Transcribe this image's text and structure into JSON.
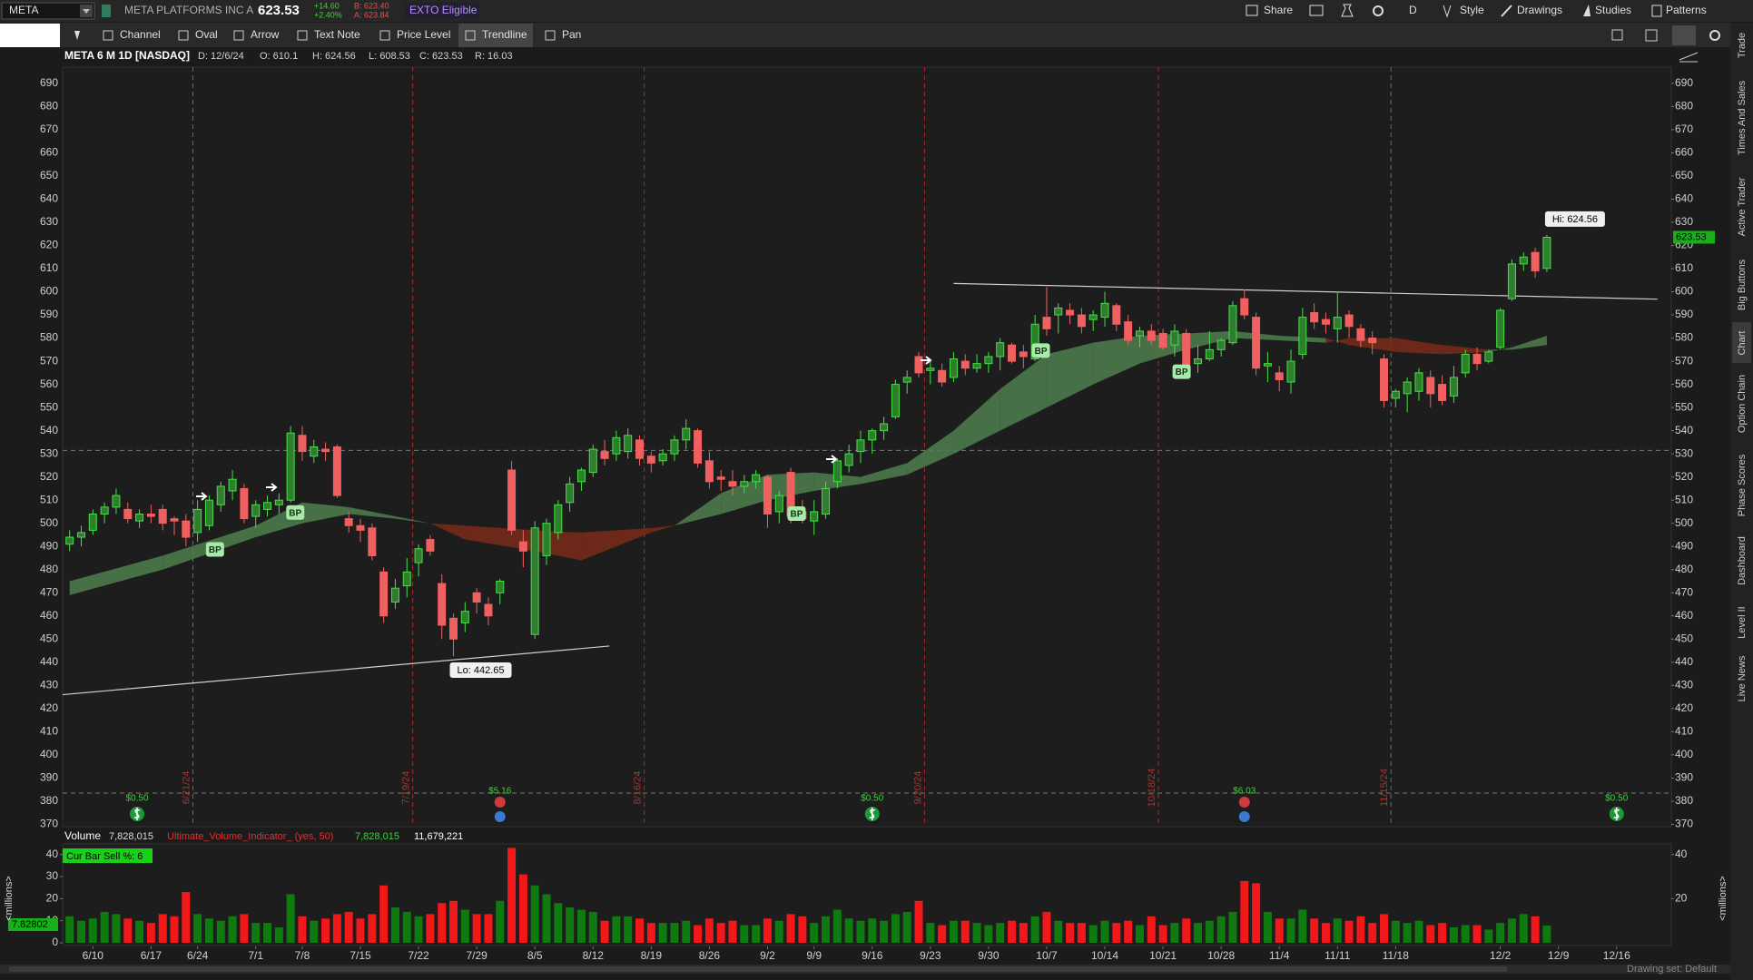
{
  "header": {
    "symbol": "META",
    "company": "META PLATFORMS INC A",
    "change": "+14.60",
    "change_pct": "+2.40%",
    "bid": "B: 623.40",
    "ask": "A: 623.84",
    "badge": "EXTO Eligible",
    "share": "Share",
    "period": "D",
    "style": "Style",
    "drawings": "Drawings",
    "studies": "Studies",
    "patterns": "Patterns"
  },
  "toolbar": [
    "Channel",
    "Oval",
    "Arrow",
    "Text Note",
    "Price Level",
    "Trendline",
    "Pan"
  ],
  "sidebar": [
    "Trade",
    "Times And Sales",
    "Active Trader",
    "Big Buttons",
    "Chart",
    "Option Chain",
    "Phase Scores",
    "Dashboard",
    "Level II",
    "Live News"
  ],
  "footer": "Drawing set: Default",
  "chart_data": [
    {
      "type": "candlestick",
      "title": "META 6 M 1D [NASDAQ]",
      "info": [
        "D: 12/6/24",
        "O: 610.1",
        "H: 624.56",
        "L: 608.53",
        "C: 623.53",
        "R: 16.03"
      ],
      "open": [
        491,
        494,
        497,
        504,
        507,
        506,
        501,
        504,
        506,
        502,
        501,
        496,
        499,
        508,
        514,
        515,
        503,
        506,
        508,
        510,
        538,
        529,
        532,
        533,
        502,
        499,
        498,
        479,
        466,
        473,
        483,
        493,
        474,
        459,
        457,
        470,
        465,
        470,
        523,
        492,
        452,
        486,
        496,
        509,
        518,
        522,
        531,
        530,
        531,
        536,
        529,
        527,
        530,
        536,
        540,
        527,
        520,
        518,
        516,
        518,
        520,
        505,
        522,
        505,
        501,
        504,
        518,
        525,
        531,
        536,
        540,
        546,
        561,
        572,
        566,
        566,
        563,
        570,
        567,
        569,
        572,
        577,
        574,
        571,
        589,
        590,
        592,
        590,
        588,
        589,
        594,
        587,
        581,
        583,
        582,
        577,
        582,
        569,
        571,
        575,
        578,
        597,
        589,
        568,
        565,
        561,
        573,
        591,
        588,
        584,
        590,
        584,
        580,
        571,
        554,
        556,
        557,
        563,
        560,
        555,
        565,
        573,
        570,
        576,
        597,
        612,
        617,
        610.1
      ],
      "high": [
        497,
        499,
        506,
        509,
        515,
        509,
        506,
        508,
        508,
        503,
        504,
        510,
        512,
        518,
        523,
        517,
        510,
        512,
        513,
        542,
        542,
        536,
        535,
        534,
        505,
        502,
        500,
        481,
        476,
        485,
        491,
        495,
        478,
        461,
        466,
        472,
        468,
        476,
        527,
        497,
        501,
        502,
        510,
        520,
        524,
        534,
        536,
        540,
        541,
        538,
        531,
        532,
        538,
        545,
        541,
        531,
        523,
        523,
        521,
        523,
        521,
        514,
        524,
        510,
        510,
        518,
        528,
        534,
        540,
        541,
        546,
        562,
        566,
        574,
        571,
        569,
        574,
        573,
        573,
        574,
        580,
        578,
        577,
        590,
        602,
        595,
        595,
        593,
        592,
        600,
        595,
        590,
        585,
        586,
        584,
        586,
        584,
        577,
        583,
        580,
        596,
        601,
        591,
        574,
        568,
        575,
        593,
        595,
        591,
        600,
        592,
        586,
        583,
        573,
        558,
        563,
        567,
        566,
        564,
        568,
        575,
        576,
        575,
        593,
        614,
        617,
        619,
        624.56
      ],
      "low": [
        488,
        490,
        495,
        500,
        504,
        500,
        498,
        500,
        497,
        495,
        490,
        492,
        497,
        505,
        510,
        500,
        498,
        503,
        504,
        509,
        527,
        526,
        527,
        511,
        496,
        492,
        484,
        457,
        463,
        468,
        477,
        486,
        450,
        442.65,
        453,
        461,
        456,
        465,
        495,
        481,
        450,
        482,
        493,
        505,
        514,
        520,
        525,
        527,
        528,
        525,
        522,
        525,
        527,
        532,
        524,
        515,
        514,
        512,
        513,
        515,
        498,
        500,
        500,
        500,
        495,
        502,
        515,
        522,
        526,
        530,
        536,
        545,
        556,
        563,
        560,
        559,
        561,
        564,
        565,
        565,
        566,
        569,
        567,
        570,
        581,
        582,
        586,
        582,
        583,
        585,
        583,
        577,
        576,
        577,
        575,
        572,
        565,
        565,
        570,
        572,
        577,
        588,
        564,
        561,
        557,
        556,
        571,
        584,
        582,
        578,
        580,
        576,
        573,
        550,
        550,
        548,
        553,
        550,
        551,
        552,
        563,
        566,
        569,
        575,
        596,
        609,
        606,
        608.53
      ],
      "close": [
        494,
        496,
        504,
        507,
        512,
        502,
        504,
        503,
        500,
        501,
        494,
        506,
        510,
        516,
        519,
        502,
        508,
        509,
        510,
        539,
        531,
        533,
        531,
        512,
        499,
        497,
        486,
        460,
        472,
        479,
        489,
        488,
        456,
        450,
        462,
        466,
        460,
        475,
        497,
        488,
        498,
        500,
        508,
        517,
        523,
        532,
        528,
        537,
        538,
        528,
        526,
        530,
        536,
        541,
        526,
        518,
        519,
        516,
        518,
        521,
        504,
        512,
        503,
        502,
        505,
        515,
        527,
        530,
        536,
        540,
        543,
        560,
        563,
        565,
        567,
        561,
        571,
        567,
        569,
        572,
        578,
        570,
        572,
        586,
        584,
        593,
        590,
        585,
        590,
        595,
        586,
        579,
        583,
        579,
        576,
        583,
        566,
        571,
        575,
        579,
        594,
        590,
        567,
        569,
        562,
        570,
        589,
        587,
        586,
        589,
        585,
        579,
        578,
        553,
        557,
        561,
        565,
        556,
        553,
        563,
        573,
        569,
        574,
        592,
        612,
        615,
        609,
        623.53
      ],
      "colors": {
        "up": "#2f7d2f",
        "up_edge": "#45e045",
        "down": "#f06060"
      },
      "xlim": [
        -0.6,
        137.7
      ],
      "xticks": [
        {
          "value": 2,
          "label": "6/10"
        },
        {
          "value": 7,
          "label": "6/17"
        },
        {
          "value": 11,
          "label": "6/24"
        },
        {
          "value": 16,
          "label": "7/1"
        },
        {
          "value": 20,
          "label": "7/8"
        },
        {
          "value": 25,
          "label": "7/15"
        },
        {
          "value": 30,
          "label": "7/22"
        },
        {
          "value": 35,
          "label": "7/29"
        },
        {
          "value": 40,
          "label": "8/5"
        },
        {
          "value": 45,
          "label": "8/12"
        },
        {
          "value": 50,
          "label": "8/19"
        },
        {
          "value": 55,
          "label": "8/26"
        },
        {
          "value": 60,
          "label": "9/2"
        },
        {
          "value": 64,
          "label": "9/9"
        },
        {
          "value": 69,
          "label": "9/16"
        },
        {
          "value": 74,
          "label": "9/23"
        },
        {
          "value": 79,
          "label": "9/30"
        },
        {
          "value": 84,
          "label": "10/7"
        },
        {
          "value": 89,
          "label": "10/14"
        },
        {
          "value": 94,
          "label": "10/21"
        },
        {
          "value": 99,
          "label": "10/28"
        },
        {
          "value": 104,
          "label": "11/4"
        },
        {
          "value": 109,
          "label": "11/11"
        },
        {
          "value": 114,
          "label": "11/18"
        },
        {
          "value": 123,
          "label": "12/2"
        },
        {
          "value": 128,
          "label": "12/9"
        },
        {
          "value": 133,
          "label": "12/16"
        }
      ],
      "ylim": [
        369,
        697
      ],
      "yticks": [
        370,
        380,
        390,
        400,
        410,
        420,
        430,
        440,
        450,
        460,
        470,
        480,
        490,
        500,
        510,
        520,
        530,
        540,
        550,
        560,
        570,
        580,
        590,
        600,
        610,
        620,
        630,
        640,
        650,
        660,
        670,
        680,
        690
      ],
      "high_label": "Hi: 624.56",
      "low_label": "Lo: 442.65",
      "cloud": {
        "x": [
          0,
          8,
          16,
          20,
          24,
          28,
          31,
          34,
          40,
          44,
          50,
          52,
          56,
          60,
          64,
          68,
          72,
          76,
          80,
          84,
          88,
          92,
          96,
          100,
          104,
          108,
          110,
          114,
          118,
          122,
          124,
          127
        ],
        "fast": [
          475,
          486,
          499,
          509,
          507,
          503,
          500,
          493,
          488,
          484,
          496,
          499,
          513,
          521,
          522,
          520,
          526,
          540,
          558,
          573,
          578,
          581,
          582,
          583,
          581,
          580,
          577,
          574,
          573,
          574,
          576,
          581
        ],
        "slow": [
          469,
          480,
          494,
          500,
          504,
          502,
          500,
          499,
          497,
          496,
          498,
          499,
          504,
          510,
          514,
          517,
          521,
          530,
          540,
          550,
          560,
          569,
          575,
          580,
          579,
          578,
          580,
          580,
          577,
          575,
          575,
          577
        ],
        "colors": {
          "up": "#4f7f4f",
          "down": "#7a2a18"
        }
      },
      "trendlines": [
        {
          "x": [
            -0.6,
            46.4
          ],
          "y": [
            426,
            447
          ]
        },
        {
          "x": [
            76,
            136.5
          ],
          "y": [
            603.6,
            596.8
          ]
        }
      ],
      "hlines": [
        531.5,
        383.5
      ],
      "expirations": [
        {
          "x": 10.6,
          "label": "6/21/24",
          "color": "#6a6a6a"
        },
        {
          "x": 29.5,
          "label": "7/19/24",
          "color": "#b02828"
        },
        {
          "x": 49.4,
          "label": "8/16/24",
          "color": "#b02828"
        },
        {
          "x": 73.5,
          "label": "9/20/24",
          "color": "#b02828"
        },
        {
          "x": 93.6,
          "label": "10/18/24",
          "color": "#b02828"
        },
        {
          "x": 113.6,
          "label": "11/15/24",
          "color": "#6a6a6a"
        }
      ],
      "bp": [
        {
          "label": "BP",
          "x": 12.5,
          "y": 488.7
        },
        {
          "label": "BP",
          "x": 19.4,
          "y": 504.7
        },
        {
          "label": "BP",
          "x": 62.5,
          "y": 504.2
        },
        {
          "label": "BP",
          "x": 83.5,
          "y": 574.6
        },
        {
          "label": "BP",
          "x": 95.6,
          "y": 565.5
        }
      ],
      "events": [
        {
          "kind": "dividend",
          "x": 5.8,
          "label": "$0.50"
        },
        {
          "kind": "earnings",
          "x": 37,
          "label": "$5.16"
        },
        {
          "kind": "dividend",
          "x": 69,
          "label": "$0.50"
        },
        {
          "kind": "earnings",
          "x": 101,
          "label": "$6.03"
        },
        {
          "kind": "dividend",
          "x": 133,
          "label": "$0.50"
        }
      ]
    },
    {
      "type": "bar",
      "title": "Volume",
      "legend": [
        "7,828,015",
        "Ultimate_Volume_Indicator_ (yes, 50)",
        "7,828,015",
        "11,679,221"
      ],
      "badge": "Cur Bar Sell %: 6",
      "last_label": "7.82802",
      "axis_label": "<millions>",
      "values": [
        12,
        10,
        11,
        14,
        13,
        11,
        10,
        9,
        13,
        12,
        23,
        13,
        11,
        10,
        12,
        13,
        9,
        9,
        7,
        22,
        12,
        10,
        11,
        13,
        14,
        11,
        13,
        26,
        16,
        14,
        12,
        13,
        18,
        19,
        15,
        13,
        13,
        19,
        43,
        31,
        26,
        22,
        18,
        16,
        15,
        14,
        10,
        12,
        12,
        11,
        9,
        9,
        9,
        10,
        8,
        11,
        9,
        10,
        8,
        8,
        11,
        10,
        13,
        12,
        9,
        12,
        15,
        11,
        10,
        11,
        10,
        13,
        14,
        19,
        9,
        8,
        10,
        10,
        9,
        8,
        9,
        10,
        9,
        12,
        14,
        10,
        9,
        9,
        8,
        10,
        9,
        10,
        8,
        12,
        8,
        9,
        11,
        9,
        10,
        12,
        14,
        28,
        27,
        14,
        11,
        11,
        15,
        11,
        9,
        11,
        10,
        12,
        9,
        13,
        10,
        9,
        10,
        8,
        9,
        7,
        8,
        8,
        6,
        9,
        11,
        13,
        12,
        7.828015
      ],
      "colors": {
        "up": "#0f7a0f",
        "down": "#f01818"
      },
      "ylim": [
        0,
        44
      ],
      "yticks": [
        0,
        10,
        20,
        30,
        40
      ],
      "y2ticks": [
        20,
        40
      ]
    }
  ]
}
